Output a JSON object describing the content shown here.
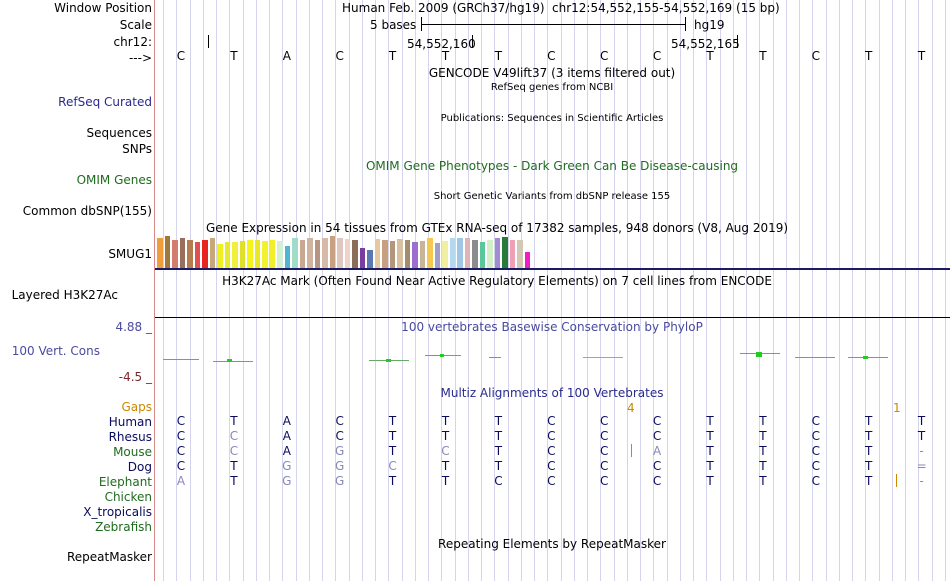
{
  "left_labels": {
    "window_position": "Window Position",
    "scale": "Scale",
    "chrom": "chr12:",
    "strand": "--->",
    "refseq": "RefSeq Curated",
    "sequences": "Sequences",
    "snps": "SNPs",
    "omim": "OMIM Genes",
    "dbsnp": "Common dbSNP(155)",
    "gene": "SMUG1",
    "h3k27ac": "Layered H3K27Ac",
    "cons_max": "4.88 _",
    "cons": "100 Vert. Cons",
    "cons_min": "-4.5 _",
    "gaps": "Gaps",
    "species": [
      "Human",
      "Rhesus",
      "Mouse",
      "Dog",
      "Elephant",
      "Chicken",
      "X_tropicalis",
      "Zebrafish"
    ],
    "repeatmasker": "RepeatMasker"
  },
  "colors": {
    "label_blue": "#2a2a8e",
    "label_green": "#1f6b1f",
    "gaps_orange": "#cc8800",
    "cons_purple": "#4a4aa0",
    "dark_navy": "#0b0b5e"
  },
  "header": {
    "assembly": "Human Feb. 2009 (GRCh37/hg19)",
    "position": "chr12:54,552,155-54,552,169 (15 bp)",
    "scale_label": "5 bases",
    "scale_db": "hg19",
    "coord1": "54,552,160",
    "coord2": "54,552,165"
  },
  "bases": [
    "C",
    "T",
    "A",
    "C",
    "T",
    "T",
    "T",
    "C",
    "C",
    "C",
    "T",
    "T",
    "C",
    "T",
    "T"
  ],
  "tracks": {
    "gencode": "GENCODE V49lift37 (3 items filtered out)",
    "refseq": "RefSeq genes from NCBI",
    "publications": "Publications: Sequences in Scientific Articles",
    "omim": "OMIM Gene Phenotypes - Dark Green Can Be Disease-causing",
    "dbsnp": "Short Genetic Variants from dbSNP release 155",
    "gtex": "Gene Expression in 54 tissues from GTEx RNA-seq of 17382 samples, 948 donors (V8, Aug 2019)",
    "h3k27ac": "H3K27Ac Mark (Often Found Near Active Regulatory Elements) on 7 cell lines from ENCODE",
    "cons": "100 vertebrates Basewise Conservation by PhyloP",
    "multiz": "Multiz Alignments of 100 Vertebrates",
    "rmsk": "Repeating Elements by RepeatMasker"
  },
  "gtex_colors": [
    "#f39c3c",
    "#a0783c",
    "#d27d6e",
    "#9a6e5a",
    "#b57c50",
    "#e05050",
    "#e8241f",
    "#c8a878",
    "#f0f01e",
    "#e8e830",
    "#f0f03c",
    "#e0e028",
    "#f5f51a",
    "#e8e826",
    "#f2f22e",
    "#f0f02a",
    "#d4f0d4",
    "#50b4d2",
    "#a0dcc8",
    "#c8a890",
    "#d0b4a0",
    "#b49682",
    "#d8b8a8",
    "#c8a082",
    "#e0c8c0",
    "#f0d2c8",
    "#8a6e5a",
    "#7a3ca0",
    "#5a78b4",
    "#e8c8a0",
    "#c8a080",
    "#b49678",
    "#d8c0a0",
    "#a08c6e",
    "#9b6fd0",
    "#c8b496",
    "#f5c850",
    "#a0a0c8",
    "#f0f0a0",
    "#b4d8f0",
    "#a0c8e6",
    "#e0b4b4",
    "#8c8c8c",
    "#58c89a",
    "#d2f0c8",
    "#a08cd2",
    "#2a7a3a",
    "#f0a0b4",
    "#d2c8b4",
    "#f01ec8"
  ],
  "gtex_heights": [
    30,
    32,
    28,
    30,
    28,
    26,
    28,
    30,
    24,
    26,
    26,
    27,
    28,
    28,
    27,
    28,
    27,
    22,
    30,
    28,
    30,
    28,
    30,
    32,
    30,
    29,
    28,
    20,
    18,
    29,
    28,
    27,
    29,
    28,
    26,
    27,
    30,
    25,
    27,
    30,
    30,
    30,
    28,
    26,
    28,
    30,
    31,
    28,
    28,
    16
  ],
  "gaps": {
    "g1": "4",
    "g2": "1"
  },
  "alignments": [
    [
      "C",
      "T",
      "A",
      "C",
      "T",
      "T",
      "T",
      "C",
      "C",
      "C",
      "T",
      "T",
      "C",
      "T",
      "T"
    ],
    [
      "C",
      "C",
      "A",
      "C",
      "T",
      "T",
      "T",
      "C",
      "C",
      "C",
      "T",
      "T",
      "C",
      "T",
      "T"
    ],
    [
      "C",
      "C",
      "A",
      "G",
      "T",
      "C",
      "T",
      "C",
      "C",
      "A",
      "T",
      "T",
      "C",
      "T",
      "-"
    ],
    [
      "C",
      "T",
      "G",
      "G",
      "C",
      "T",
      "T",
      "C",
      "C",
      "C",
      "T",
      "T",
      "C",
      "T",
      "="
    ],
    [
      "A",
      "T",
      "G",
      "G",
      "T",
      "T",
      "C",
      "C",
      "C",
      "C",
      "T",
      "T",
      "C",
      "T",
      "-"
    ]
  ],
  "mismatch": [
    [
      0,
      0,
      0,
      0,
      0,
      0,
      0,
      0,
      0,
      0,
      0,
      0,
      0,
      0,
      0
    ],
    [
      0,
      1,
      0,
      0,
      0,
      0,
      0,
      0,
      0,
      0,
      0,
      0,
      0,
      0,
      0
    ],
    [
      0,
      1,
      0,
      1,
      0,
      1,
      0,
      0,
      0,
      1,
      0,
      0,
      0,
      0,
      1
    ],
    [
      0,
      0,
      1,
      1,
      1,
      0,
      0,
      0,
      0,
      0,
      0,
      0,
      0,
      0,
      1
    ],
    [
      1,
      0,
      1,
      1,
      0,
      0,
      0,
      0,
      0,
      0,
      0,
      0,
      0,
      0,
      1
    ]
  ]
}
